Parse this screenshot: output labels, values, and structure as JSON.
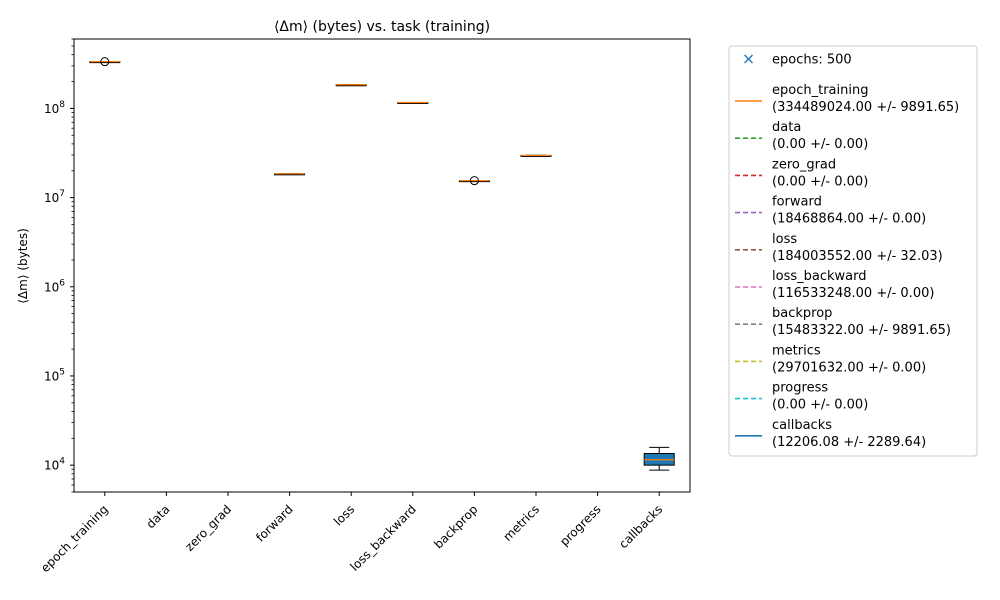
{
  "chart_data": {
    "type": "box",
    "title": "⟨Δm⟩ (bytes) vs. task (training)",
    "xlabel": "",
    "ylabel": "⟨Δm⟩ (bytes)",
    "yscale": "log",
    "ylim": [
      5000,
      600000000
    ],
    "yticks": [
      {
        "value": 10000,
        "base": "10",
        "exp": "4"
      },
      {
        "value": 100000,
        "base": "10",
        "exp": "5"
      },
      {
        "value": 1000000,
        "base": "10",
        "exp": "6"
      },
      {
        "value": 10000000,
        "base": "10",
        "exp": "7"
      },
      {
        "value": 100000000,
        "base": "10",
        "exp": "8"
      }
    ],
    "categories": [
      "epoch_training",
      "data",
      "zero_grad",
      "forward",
      "loss",
      "loss_backward",
      "backprop",
      "metrics",
      "progress",
      "callbacks"
    ],
    "boxes": [
      {
        "label": "epoch_training",
        "median": 334489024,
        "q1": 334480000,
        "q3": 334498000,
        "whisker_low": 334470000,
        "whisker_high": 334500000,
        "outliers": [
          334489024
        ],
        "filled": false
      },
      {
        "label": "data",
        "median": 0,
        "q1": 0,
        "q3": 0,
        "whisker_low": 0,
        "whisker_high": 0,
        "outliers": [],
        "filled": false
      },
      {
        "label": "zero_grad",
        "median": 0,
        "q1": 0,
        "q3": 0,
        "whisker_low": 0,
        "whisker_high": 0,
        "outliers": [],
        "filled": false
      },
      {
        "label": "forward",
        "median": 18468864,
        "q1": 18468864,
        "q3": 18468864,
        "whisker_low": 18468864,
        "whisker_high": 18468864,
        "outliers": [],
        "filled": false
      },
      {
        "label": "loss",
        "median": 184003552,
        "q1": 184003520,
        "q3": 184003584,
        "whisker_low": 184003520,
        "whisker_high": 184003584,
        "outliers": [],
        "filled": false
      },
      {
        "label": "loss_backward",
        "median": 116533248,
        "q1": 116533248,
        "q3": 116533248,
        "whisker_low": 116533248,
        "whisker_high": 116533248,
        "outliers": [],
        "filled": false
      },
      {
        "label": "backprop",
        "median": 15483322,
        "q1": 15478000,
        "q3": 15488000,
        "whisker_low": 15470000,
        "whisker_high": 15490000,
        "outliers": [
          15483322
        ],
        "filled": false
      },
      {
        "label": "metrics",
        "median": 29701632,
        "q1": 29701632,
        "q3": 29701632,
        "whisker_low": 29701632,
        "whisker_high": 29701632,
        "outliers": [],
        "filled": false
      },
      {
        "label": "progress",
        "median": 0,
        "q1": 0,
        "q3": 0,
        "whisker_low": 0,
        "whisker_high": 0,
        "outliers": [],
        "filled": false
      },
      {
        "label": "callbacks",
        "median": 11500,
        "q1": 10000,
        "q3": 13500,
        "whisker_low": 8800,
        "whisker_high": 15800,
        "outliers": [],
        "filled": true
      }
    ],
    "legend": {
      "placement": "outside-right",
      "entries": [
        {
          "label": "epochs: 500",
          "line2": "",
          "color": "#1f77b4",
          "style": "marker-x"
        },
        {
          "label": "epoch_training",
          "line2": "(334489024.00 +/- 9891.65)",
          "color": "#ff7f0e",
          "style": "solid"
        },
        {
          "label": "data",
          "line2": "(0.00 +/- 0.00)",
          "color": "#2ca02c",
          "style": "dashed"
        },
        {
          "label": "zero_grad",
          "line2": "(0.00 +/- 0.00)",
          "color": "#d62728",
          "style": "dashed"
        },
        {
          "label": "forward",
          "line2": "(18468864.00 +/- 0.00)",
          "color": "#9467bd",
          "style": "dashed"
        },
        {
          "label": "loss",
          "line2": "(184003552.00 +/- 32.03)",
          "color": "#8c564b",
          "style": "dashed"
        },
        {
          "label": "loss_backward",
          "line2": "(116533248.00 +/- 0.00)",
          "color": "#e377c2",
          "style": "dashed"
        },
        {
          "label": "backprop",
          "line2": "(15483322.00 +/- 9891.65)",
          "color": "#7f7f7f",
          "style": "dashed"
        },
        {
          "label": "metrics",
          "line2": "(29701632.00 +/- 0.00)",
          "color": "#bcbd22",
          "style": "dashed"
        },
        {
          "label": "progress",
          "line2": "(0.00 +/- 0.00)",
          "color": "#17becf",
          "style": "dashed"
        },
        {
          "label": "callbacks",
          "line2": "(12206.08 +/- 2289.64)",
          "color": "#1f77b4",
          "style": "solid"
        }
      ]
    },
    "colors": {
      "median": "#ff7f0e",
      "box_fill": "#1f77b4",
      "box_edge": "#000000"
    }
  }
}
